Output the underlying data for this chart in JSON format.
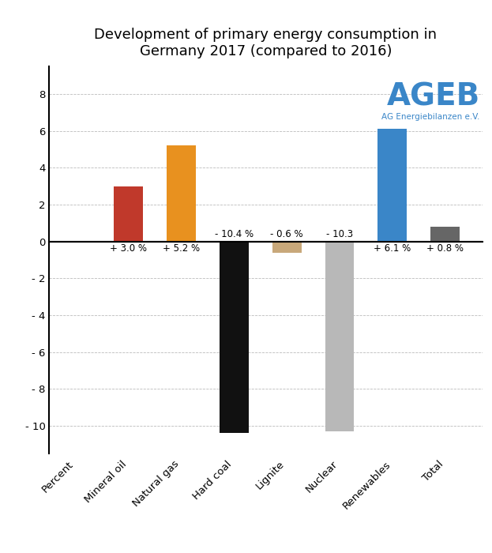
{
  "title": "Development of primary energy consumption in\nGermany 2017 (compared to 2016)",
  "categories": [
    "Percent",
    "Mineral oil",
    "Natural gas",
    "Hard coal",
    "Lignite",
    "Nuclear",
    "Renewables",
    "Total"
  ],
  "values": [
    null,
    3.0,
    5.2,
    -10.4,
    -0.6,
    -10.3,
    6.1,
    0.8
  ],
  "colors": [
    "#ffffff",
    "#c0392b",
    "#e8911f",
    "#111111",
    "#c8a87a",
    "#b8b8b8",
    "#3a86c8",
    "#666666"
  ],
  "labels": [
    "",
    "+ 3.0 %",
    "+ 5.2 %",
    "- 10.4 %",
    "- 0.6 %",
    "- 10.3",
    "+ 6.1 %",
    "+ 0.8 %"
  ],
  "ylim": [
    -11.5,
    9.5
  ],
  "yticks": [
    -10,
    -8,
    -6,
    -4,
    -2,
    0,
    2,
    4,
    6,
    8
  ],
  "background_color": "#ffffff",
  "grid_color": "#aaaaaa",
  "title_fontsize": 13,
  "label_fontsize": 8.5,
  "tick_fontsize": 9.5,
  "xtick_fontsize": 9.5,
  "ageb_color": "#3a86c8",
  "ageb_fontsize": 28,
  "ageb_sub_fontsize": 7.5
}
